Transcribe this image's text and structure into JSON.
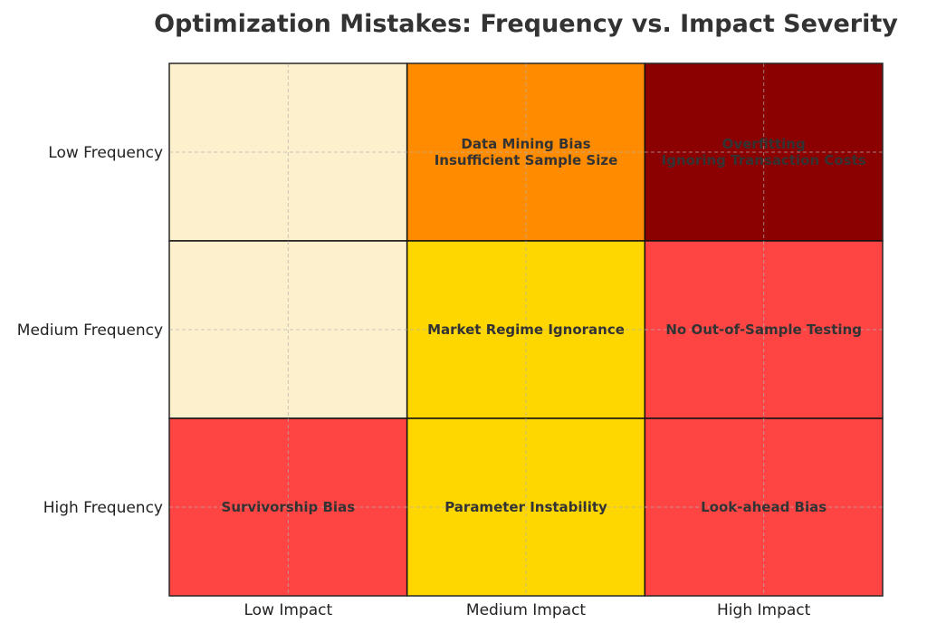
{
  "chart_data": {
    "type": "heatmap",
    "title": "Optimization Mistakes: Frequency vs. Impact Severity",
    "xlabel": "",
    "ylabel": "",
    "x_categories": [
      "Low Impact",
      "Medium Impact",
      "High Impact"
    ],
    "y_categories": [
      "Low Frequency",
      "Medium Frequency",
      "High Frequency"
    ],
    "grid": true,
    "colors": {
      "none": "#fdf0cc",
      "moderate": "#ffd700",
      "elevated": "#ff8c00",
      "high": "#ff4444",
      "critical": "#8b0000"
    },
    "cells": [
      {
        "row": 0,
        "col": 0,
        "level": "none",
        "labels": []
      },
      {
        "row": 0,
        "col": 1,
        "level": "elevated",
        "labels": [
          "Data Mining Bias",
          "Insufficient Sample Size"
        ]
      },
      {
        "row": 0,
        "col": 2,
        "level": "critical",
        "labels": [
          "Overfitting",
          "Ignoring Transaction Costs"
        ]
      },
      {
        "row": 1,
        "col": 0,
        "level": "none",
        "labels": []
      },
      {
        "row": 1,
        "col": 1,
        "level": "moderate",
        "labels": [
          "Market Regime Ignorance"
        ]
      },
      {
        "row": 1,
        "col": 2,
        "level": "high",
        "labels": [
          "No Out-of-Sample Testing"
        ]
      },
      {
        "row": 2,
        "col": 0,
        "level": "high",
        "labels": [
          "Survivorship Bias"
        ]
      },
      {
        "row": 2,
        "col": 1,
        "level": "moderate",
        "labels": [
          "Parameter Instability"
        ]
      },
      {
        "row": 2,
        "col": 2,
        "level": "high",
        "labels": [
          "Look-ahead Bias"
        ]
      }
    ]
  }
}
